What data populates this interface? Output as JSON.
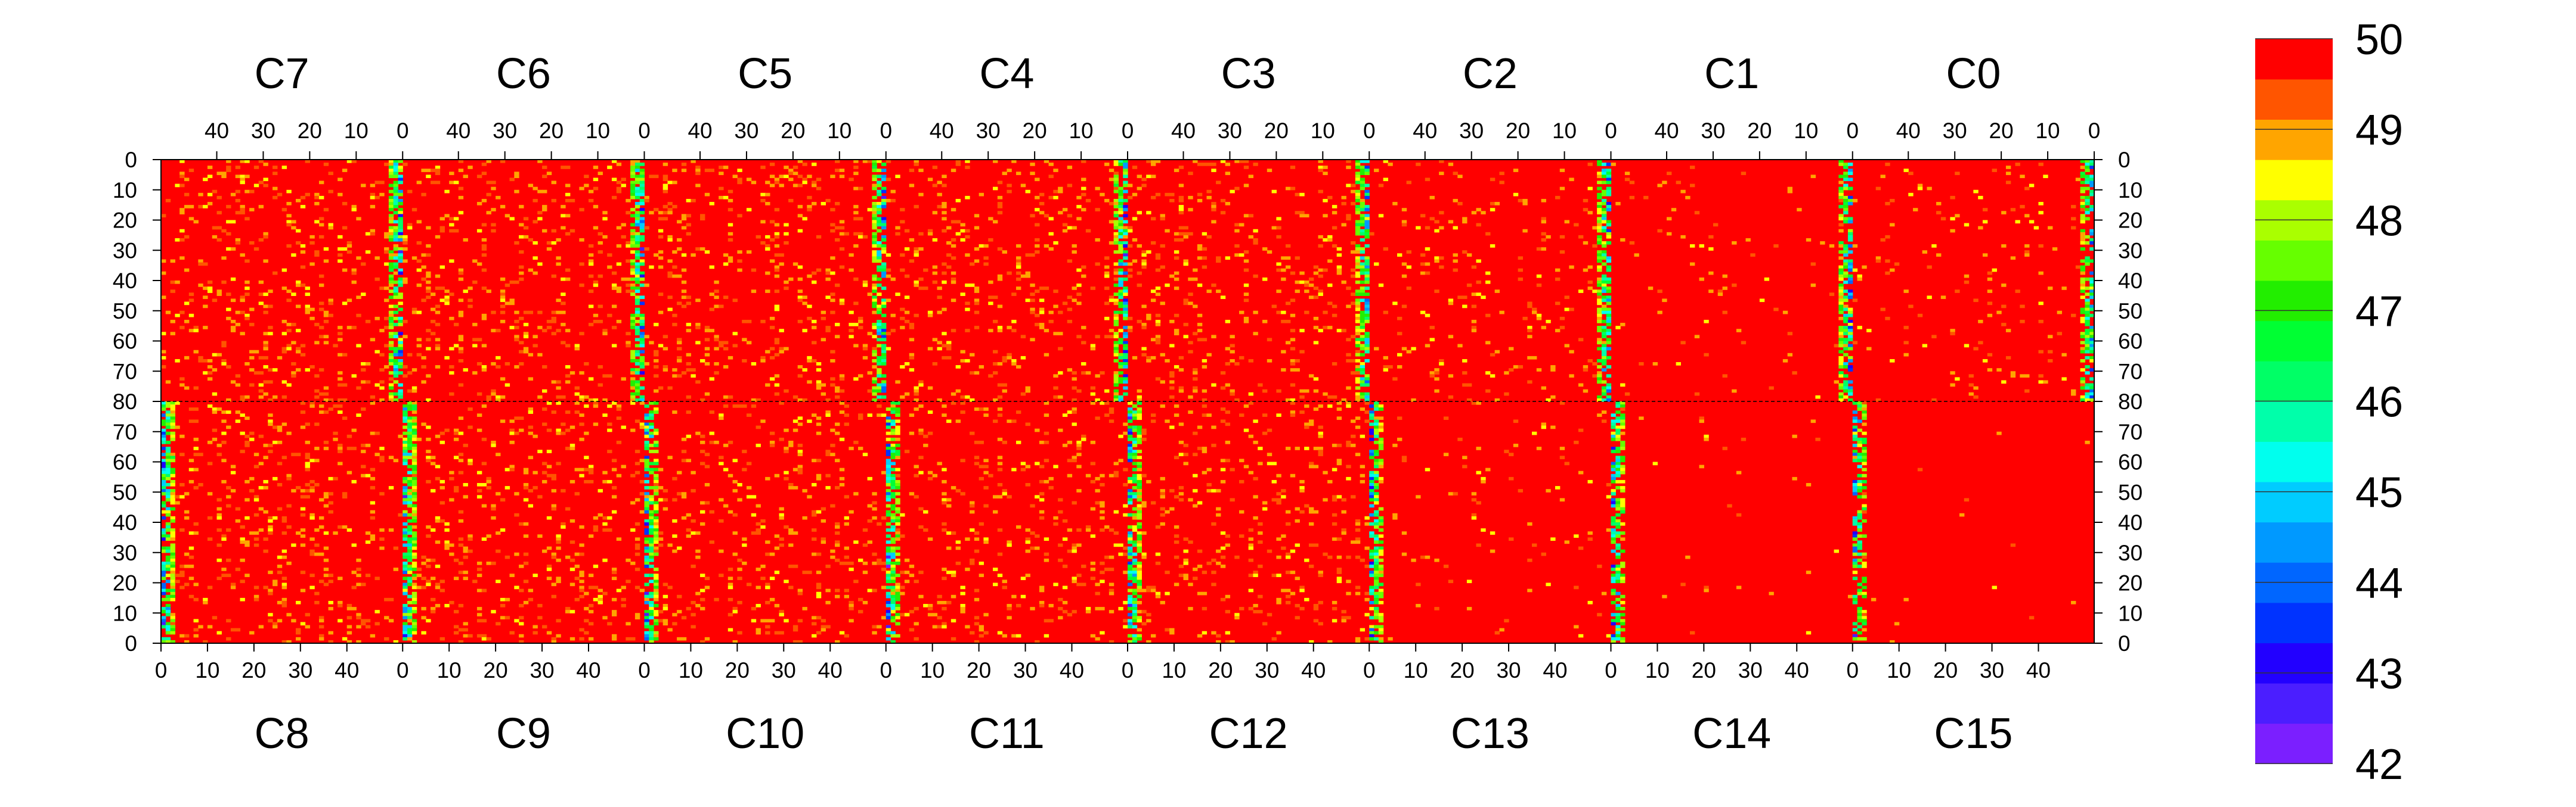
{
  "chart_data": {
    "type": "heatmap",
    "title": "",
    "xlabel": "",
    "ylabel": "",
    "chips_top": [
      "C7",
      "C6",
      "C5",
      "C4",
      "C3",
      "C2",
      "C1",
      "C0"
    ],
    "chips_bottom": [
      "C8",
      "C9",
      "C10",
      "C11",
      "C12",
      "C13",
      "C14",
      "C15"
    ],
    "columns_per_chip": 52,
    "rows_per_chip": 80,
    "top_x_ticks": [
      "40",
      "30",
      "20",
      "10",
      "0"
    ],
    "bottom_x_ticks": [
      "0",
      "10",
      "20",
      "30",
      "40"
    ],
    "top_y_ticks": [
      "0",
      "10",
      "20",
      "30",
      "40",
      "50",
      "60",
      "70",
      "80"
    ],
    "bottom_y_ticks": [
      "70",
      "60",
      "50",
      "40",
      "30",
      "20",
      "10",
      "0"
    ],
    "zlim": [
      42,
      50
    ],
    "colorbar_ticks": [
      "50",
      "49",
      "48",
      "47",
      "46",
      "45",
      "44",
      "43",
      "42"
    ],
    "colorbar_levels": 16,
    "colorbar_colors": [
      "#7b1fff",
      "#4b1eff",
      "#2200ff",
      "#0033ff",
      "#0066ff",
      "#0099ff",
      "#00ccff",
      "#00ffee",
      "#00ffaa",
      "#00ff66",
      "#00ff33",
      "#22ee00",
      "#66ff00",
      "#aaff00",
      "#ffff00",
      "#ffa500",
      "#ff5500",
      "#ff0000"
    ],
    "grid": false,
    "legend": "right",
    "value_model": {
      "baseline": 50,
      "mean_deficit_top": [
        1.0,
        1.0,
        1.0,
        0.9,
        0.9,
        0.45,
        0.2,
        0.35
      ],
      "mean_deficit_bottom": [
        1.0,
        1.0,
        0.85,
        0.8,
        0.8,
        0.25,
        0.05,
        0.05
      ],
      "edge_column_deficit": 2.5
    }
  }
}
